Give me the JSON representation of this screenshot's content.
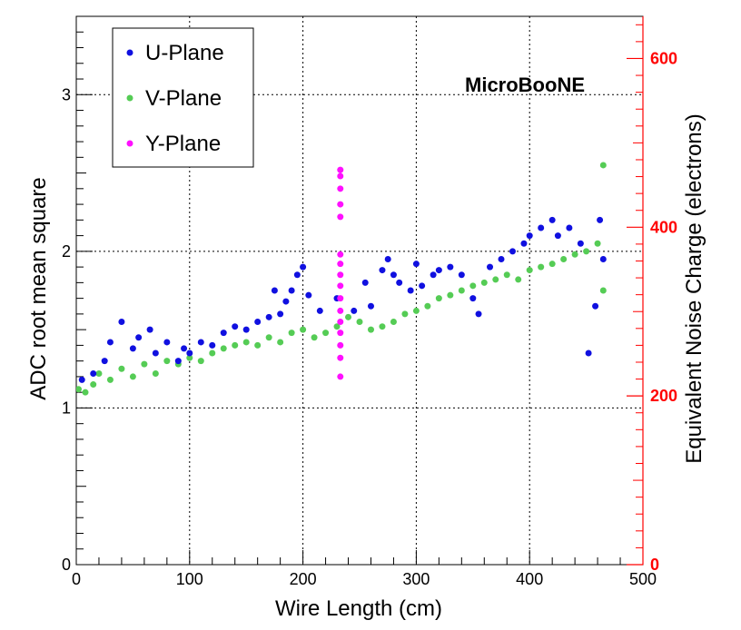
{
  "chart_data": {
    "type": "scatter",
    "xlabel": "Wire Length (cm)",
    "ylabel": "ADC root mean square",
    "y2label": "Equivalent Noise Charge (electrons)",
    "xlim": [
      0,
      500
    ],
    "ylim": [
      0,
      3.5
    ],
    "y2lim": [
      0,
      650
    ],
    "x_ticks": [
      0,
      100,
      200,
      300,
      400,
      500
    ],
    "y_ticks": [
      0,
      1,
      2,
      3
    ],
    "y2_ticks": [
      0,
      200,
      400,
      600
    ],
    "grid": true,
    "legend_position": "top-left",
    "annotation": "MicroBooNE",
    "colors": {
      "u": "#1010e0",
      "v": "#55cc55",
      "y": "#ff10ff",
      "right_axis": "#ff0000"
    },
    "series": [
      {
        "name": "U-Plane",
        "color": "#1010e0",
        "points": [
          [
            5,
            1.18
          ],
          [
            15,
            1.22
          ],
          [
            25,
            1.3
          ],
          [
            30,
            1.42
          ],
          [
            40,
            1.55
          ],
          [
            50,
            1.38
          ],
          [
            55,
            1.45
          ],
          [
            65,
            1.5
          ],
          [
            70,
            1.35
          ],
          [
            80,
            1.42
          ],
          [
            90,
            1.3
          ],
          [
            95,
            1.38
          ],
          [
            100,
            1.35
          ],
          [
            110,
            1.42
          ],
          [
            120,
            1.4
          ],
          [
            130,
            1.48
          ],
          [
            140,
            1.52
          ],
          [
            150,
            1.5
          ],
          [
            160,
            1.55
          ],
          [
            170,
            1.58
          ],
          [
            175,
            1.75
          ],
          [
            180,
            1.6
          ],
          [
            185,
            1.68
          ],
          [
            190,
            1.75
          ],
          [
            195,
            1.85
          ],
          [
            200,
            1.9
          ],
          [
            205,
            1.72
          ],
          [
            215,
            1.62
          ],
          [
            230,
            1.7
          ],
          [
            245,
            1.62
          ],
          [
            255,
            1.8
          ],
          [
            260,
            1.65
          ],
          [
            270,
            1.88
          ],
          [
            275,
            1.95
          ],
          [
            280,
            1.85
          ],
          [
            285,
            1.8
          ],
          [
            295,
            1.75
          ],
          [
            300,
            1.92
          ],
          [
            305,
            1.78
          ],
          [
            315,
            1.85
          ],
          [
            320,
            1.88
          ],
          [
            330,
            1.9
          ],
          [
            340,
            1.85
          ],
          [
            350,
            1.7
          ],
          [
            355,
            1.6
          ],
          [
            365,
            1.9
          ],
          [
            375,
            1.95
          ],
          [
            385,
            2.0
          ],
          [
            395,
            2.05
          ],
          [
            400,
            2.1
          ],
          [
            410,
            2.15
          ],
          [
            420,
            2.2
          ],
          [
            425,
            2.1
          ],
          [
            435,
            2.15
          ],
          [
            445,
            2.05
          ],
          [
            452,
            1.35
          ],
          [
            458,
            1.65
          ],
          [
            462,
            2.2
          ],
          [
            465,
            1.95
          ]
        ]
      },
      {
        "name": "V-Plane",
        "color": "#55cc55",
        "points": [
          [
            2,
            1.12
          ],
          [
            8,
            1.1
          ],
          [
            15,
            1.15
          ],
          [
            20,
            1.22
          ],
          [
            30,
            1.18
          ],
          [
            40,
            1.25
          ],
          [
            50,
            1.2
          ],
          [
            60,
            1.28
          ],
          [
            70,
            1.22
          ],
          [
            80,
            1.3
          ],
          [
            90,
            1.28
          ],
          [
            100,
            1.32
          ],
          [
            110,
            1.3
          ],
          [
            120,
            1.35
          ],
          [
            130,
            1.38
          ],
          [
            140,
            1.4
          ],
          [
            150,
            1.42
          ],
          [
            160,
            1.4
          ],
          [
            170,
            1.45
          ],
          [
            180,
            1.42
          ],
          [
            190,
            1.48
          ],
          [
            200,
            1.5
          ],
          [
            210,
            1.45
          ],
          [
            220,
            1.48
          ],
          [
            230,
            1.52
          ],
          [
            240,
            1.58
          ],
          [
            250,
            1.55
          ],
          [
            260,
            1.5
          ],
          [
            270,
            1.52
          ],
          [
            280,
            1.55
          ],
          [
            290,
            1.6
          ],
          [
            300,
            1.62
          ],
          [
            310,
            1.65
          ],
          [
            320,
            1.7
          ],
          [
            330,
            1.72
          ],
          [
            340,
            1.75
          ],
          [
            350,
            1.78
          ],
          [
            360,
            1.8
          ],
          [
            370,
            1.82
          ],
          [
            380,
            1.85
          ],
          [
            390,
            1.82
          ],
          [
            400,
            1.88
          ],
          [
            410,
            1.9
          ],
          [
            420,
            1.92
          ],
          [
            430,
            1.95
          ],
          [
            440,
            1.98
          ],
          [
            450,
            2.0
          ],
          [
            460,
            2.05
          ],
          [
            465,
            2.55
          ],
          [
            465,
            1.75
          ]
        ]
      },
      {
        "name": "Y-Plane",
        "color": "#ff10ff",
        "points": [
          [
            233,
            1.2
          ],
          [
            233,
            1.32
          ],
          [
            233,
            1.4
          ],
          [
            233,
            1.48
          ],
          [
            233,
            1.55
          ],
          [
            233,
            1.62
          ],
          [
            233,
            1.7
          ],
          [
            233,
            1.78
          ],
          [
            233,
            1.85
          ],
          [
            233,
            1.92
          ],
          [
            233,
            1.98
          ],
          [
            233,
            2.22
          ],
          [
            233,
            2.3
          ],
          [
            233,
            2.4
          ],
          [
            233,
            2.48
          ],
          [
            233,
            2.52
          ]
        ]
      }
    ]
  }
}
